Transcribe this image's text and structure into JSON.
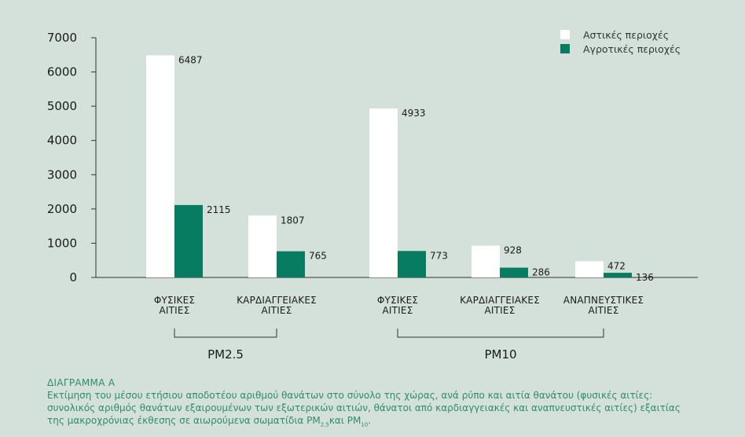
{
  "colors": {
    "urban": "#ffffff",
    "rural": "#087c60",
    "axis": "#333333",
    "caption": "#2f8d69"
  },
  "chart_data": {
    "type": "bar",
    "ylim": [
      0,
      7000
    ],
    "yticks": [
      0,
      1000,
      2000,
      3000,
      4000,
      5000,
      6000,
      7000
    ],
    "grid": false,
    "legend_position": "top-right",
    "series": [
      {
        "name": "Αστικές περιοχές",
        "values": [
          6487,
          1807,
          4933,
          928,
          472
        ]
      },
      {
        "name": "Αγροτικές περιοχές",
        "values": [
          2115,
          765,
          773,
          286,
          136
        ]
      }
    ],
    "categories": [
      [
        "ΦΥΣΙΚΕΣ",
        "ΑΙΤΙΕΣ"
      ],
      [
        "ΚΑΡΔΙΑΓΓΕΙΑΚΕΣ",
        "ΑΙΤΙΕΣ"
      ],
      [
        "ΦΥΣΙΚΕΣ",
        "ΑΙΤΙΕΣ"
      ],
      [
        "ΚΑΡΔΙΑΓΓΕΙΑΚΕΣ",
        "ΑΙΤΙΕΣ"
      ],
      [
        "ΑΝΑΠΝΕΥΣΤΙΚΕΣ",
        "ΑΙΤΙΕΣ"
      ]
    ],
    "groups": [
      {
        "label": "PM2.5",
        "categories": [
          0,
          1
        ]
      },
      {
        "label": "PM10",
        "categories": [
          2,
          3,
          4
        ]
      }
    ]
  },
  "caption": {
    "title": "ΔΙΑΓΡΑΜΜΑ Α",
    "line1": "Εκτίμηση του μέσου ετήσιου αποδοτέου αριθμού θανάτων στο σύνολο της χώρας, ανά ρύπο και αιτία θανάτου (φυσικές αιτίες:",
    "line2": "συνολικός αριθμός θανάτων εξαιρουμένων των εξωτερικών αιτιών, θάνατοι από καρδιαγγειακές και αναπνευστικές αιτίες) εξαιτίας",
    "line3_pre": "της μακροχρόνιας έκθεσης σε αιωρούμενα σωματίδια PM",
    "sub1": "2,5",
    "mid": "και PM",
    "sub2": "10",
    "end": "."
  }
}
